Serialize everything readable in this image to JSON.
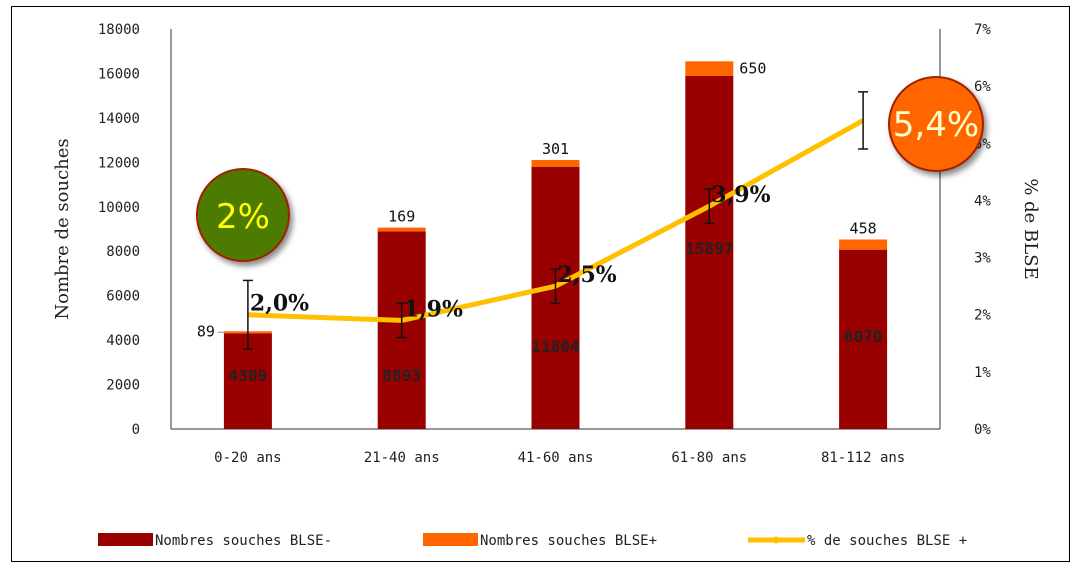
{
  "chart_data": {
    "type": "bar",
    "stacked": true,
    "categories": [
      "0-20 ans",
      "21-40 ans",
      "41-60 ans",
      "61-80 ans",
      "81-112 ans"
    ],
    "series": [
      {
        "name": "Nombres souches BLSE-",
        "values": [
          4309,
          8893,
          11804,
          15897,
          8070
        ],
        "color": "#990000",
        "axis": "left"
      },
      {
        "name": "Nombres souches BLSE+",
        "values": [
          89,
          169,
          301,
          650,
          458
        ],
        "color": "#ff6600",
        "axis": "left"
      },
      {
        "name": "% de souches BLSE +",
        "values": [
          2.0,
          1.9,
          2.5,
          3.9,
          5.4
        ],
        "color": "#ffc000",
        "axis": "right",
        "kind": "line",
        "error": [
          0.6,
          0.3,
          0.3,
          0.3,
          0.5
        ]
      }
    ],
    "pct_labels": [
      "2,0%",
      "1,9%",
      "2,5%",
      "3,9%",
      ""
    ],
    "ylabel": "Nombre de souches",
    "y2label": "% de BLSE",
    "ylim": [
      0,
      18000
    ],
    "y2lim": [
      0,
      7
    ],
    "yticks": [
      "0",
      "2000",
      "4000",
      "6000",
      "8000",
      "10000",
      "12000",
      "14000",
      "16000",
      "18000"
    ],
    "y2ticks": [
      "0%",
      "1%",
      "2%",
      "3%",
      "4%",
      "5%",
      "6%",
      "7%"
    ],
    "legend_position": "bottom",
    "grid": false,
    "badges": [
      {
        "text": "2%",
        "fill": "#4d7a00",
        "text_color": "#ffff00"
      },
      {
        "text": "5,4%",
        "fill": "#ff6600",
        "text_color": "#ffffcc"
      }
    ]
  }
}
